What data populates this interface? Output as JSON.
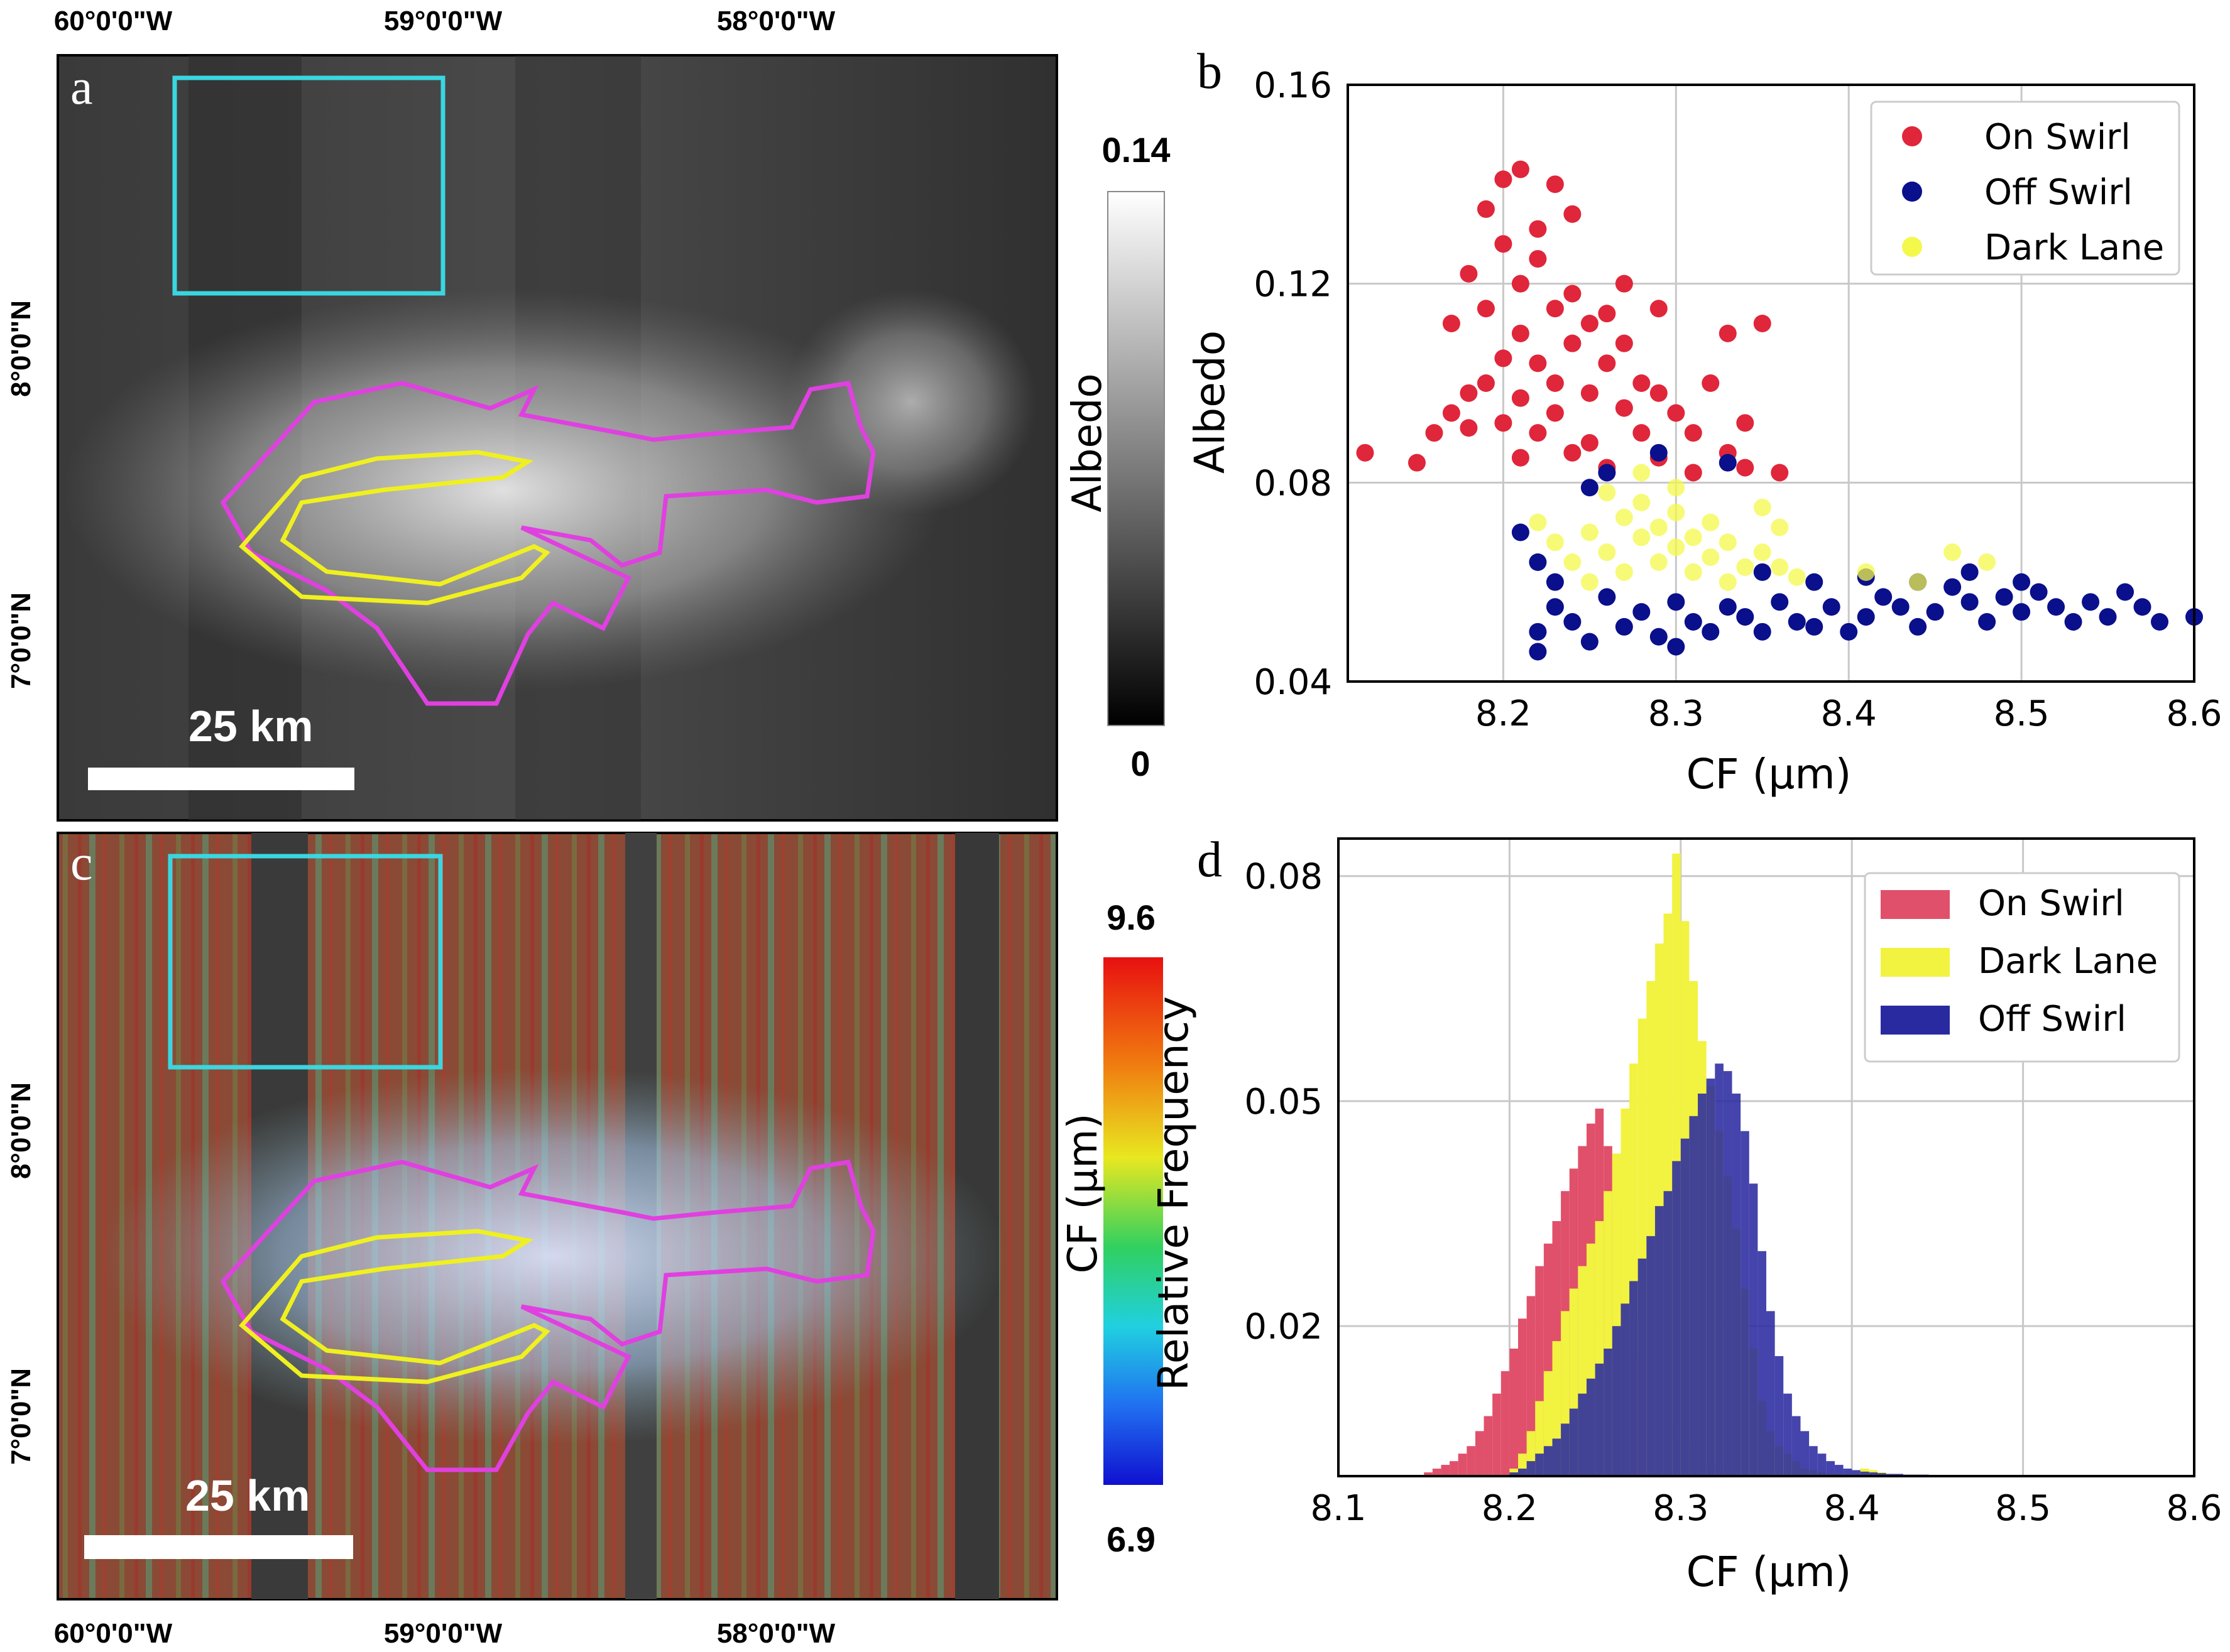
{
  "maps": {
    "panel_a_letter": "a",
    "panel_c_letter": "c",
    "lon_labels": [
      "60°0'0\"W",
      "59°0'0\"W",
      "58°0'0\"W"
    ],
    "lat_labels": [
      "8°0'0\"N",
      "7°0'0\"N"
    ],
    "scale_label": "25 km",
    "albedo_colorbar": {
      "title": "Albedo",
      "max": "0.14",
      "min": "0"
    },
    "cf_colorbar": {
      "title": "CF (μm)",
      "max": "9.6",
      "min": "6.9"
    },
    "region_colors": {
      "roi_box": "#3ad6e0",
      "on_swirl_outline": "#e040e0",
      "dark_lane_outline": "#f0f020"
    }
  },
  "chart_data": [
    {
      "panel": "b",
      "type": "scatter",
      "xlabel": "CF (μm)",
      "ylabel": "Albedo",
      "xlim": [
        8.11,
        8.6
      ],
      "ylim": [
        0.04,
        0.16
      ],
      "xticks": [
        "8.2",
        "8.3",
        "8.4",
        "8.5",
        "8.6"
      ],
      "yticks": [
        "0.04",
        "0.08",
        "0.12",
        "0.16"
      ],
      "grid": true,
      "legend_position": "top-right",
      "series": [
        {
          "name": "On Swirl",
          "color": "#e0263a",
          "points": [
            [
              8.12,
              0.086
            ],
            [
              8.15,
              0.084
            ],
            [
              8.16,
              0.09
            ],
            [
              8.17,
              0.094
            ],
            [
              8.18,
              0.091
            ],
            [
              8.18,
              0.098
            ],
            [
              8.19,
              0.1
            ],
            [
              8.17,
              0.112
            ],
            [
              8.19,
              0.115
            ],
            [
              8.2,
              0.105
            ],
            [
              8.2,
              0.092
            ],
            [
              8.21,
              0.097
            ],
            [
              8.21,
              0.11
            ],
            [
              8.21,
              0.12
            ],
            [
              8.22,
              0.125
            ],
            [
              8.22,
              0.104
            ],
            [
              8.22,
              0.09
            ],
            [
              8.23,
              0.115
            ],
            [
              8.23,
              0.1
            ],
            [
              8.23,
              0.094
            ],
            [
              8.24,
              0.108
            ],
            [
              8.24,
              0.118
            ],
            [
              8.25,
              0.112
            ],
            [
              8.25,
              0.098
            ],
            [
              8.25,
              0.088
            ],
            [
              8.26,
              0.104
            ],
            [
              8.26,
              0.114
            ],
            [
              8.27,
              0.095
            ],
            [
              8.27,
              0.108
            ],
            [
              8.28,
              0.1
            ],
            [
              8.28,
              0.09
            ],
            [
              8.29,
              0.098
            ],
            [
              8.3,
              0.094
            ],
            [
              8.31,
              0.09
            ],
            [
              8.32,
              0.1
            ],
            [
              8.33,
              0.086
            ],
            [
              8.34,
              0.083
            ],
            [
              8.2,
              0.141
            ],
            [
              8.21,
              0.143
            ],
            [
              8.19,
              0.135
            ],
            [
              8.23,
              0.14
            ],
            [
              8.24,
              0.134
            ],
            [
              8.2,
              0.128
            ],
            [
              8.22,
              0.131
            ],
            [
              8.27,
              0.12
            ],
            [
              8.29,
              0.115
            ],
            [
              8.33,
              0.11
            ],
            [
              8.35,
              0.112
            ],
            [
              8.18,
              0.122
            ],
            [
              8.26,
              0.083
            ],
            [
              8.29,
              0.085
            ],
            [
              8.31,
              0.082
            ],
            [
              8.24,
              0.086
            ],
            [
              8.21,
              0.085
            ],
            [
              8.36,
              0.082
            ],
            [
              8.34,
              0.092
            ]
          ]
        },
        {
          "name": "Off Swirl",
          "color": "#0a0f8c",
          "points": [
            [
              8.22,
              0.05
            ],
            [
              8.23,
              0.055
            ],
            [
              8.24,
              0.052
            ],
            [
              8.25,
              0.048
            ],
            [
              8.26,
              0.057
            ],
            [
              8.27,
              0.051
            ],
            [
              8.28,
              0.054
            ],
            [
              8.29,
              0.049
            ],
            [
              8.3,
              0.056
            ],
            [
              8.31,
              0.052
            ],
            [
              8.32,
              0.05
            ],
            [
              8.33,
              0.055
            ],
            [
              8.34,
              0.053
            ],
            [
              8.35,
              0.05
            ],
            [
              8.36,
              0.056
            ],
            [
              8.37,
              0.052
            ],
            [
              8.38,
              0.051
            ],
            [
              8.39,
              0.055
            ],
            [
              8.4,
              0.05
            ],
            [
              8.41,
              0.053
            ],
            [
              8.42,
              0.057
            ],
            [
              8.43,
              0.055
            ],
            [
              8.44,
              0.051
            ],
            [
              8.45,
              0.054
            ],
            [
              8.46,
              0.059
            ],
            [
              8.47,
              0.056
            ],
            [
              8.48,
              0.052
            ],
            [
              8.49,
              0.057
            ],
            [
              8.5,
              0.054
            ],
            [
              8.51,
              0.058
            ],
            [
              8.52,
              0.055
            ],
            [
              8.53,
              0.052
            ],
            [
              8.54,
              0.056
            ],
            [
              8.55,
              0.053
            ],
            [
              8.56,
              0.058
            ],
            [
              8.57,
              0.055
            ],
            [
              8.58,
              0.052
            ],
            [
              8.6,
              0.053
            ],
            [
              8.22,
              0.064
            ],
            [
              8.23,
              0.06
            ],
            [
              8.21,
              0.07
            ],
            [
              8.35,
              0.062
            ],
            [
              8.38,
              0.06
            ],
            [
              8.41,
              0.061
            ],
            [
              8.44,
              0.06
            ],
            [
              8.47,
              0.062
            ],
            [
              8.5,
              0.06
            ],
            [
              8.22,
              0.046
            ],
            [
              8.3,
              0.047
            ],
            [
              8.26,
              0.082
            ],
            [
              8.29,
              0.086
            ],
            [
              8.33,
              0.084
            ],
            [
              8.25,
              0.079
            ]
          ]
        },
        {
          "name": "Dark Lane",
          "color": "#f4f84a",
          "points": [
            [
              8.24,
              0.064
            ],
            [
              8.25,
              0.07
            ],
            [
              8.26,
              0.066
            ],
            [
              8.27,
              0.073
            ],
            [
              8.27,
              0.062
            ],
            [
              8.28,
              0.069
            ],
            [
              8.28,
              0.076
            ],
            [
              8.29,
              0.064
            ],
            [
              8.29,
              0.071
            ],
            [
              8.3,
              0.067
            ],
            [
              8.3,
              0.074
            ],
            [
              8.31,
              0.062
            ],
            [
              8.31,
              0.069
            ],
            [
              8.32,
              0.065
            ],
            [
              8.32,
              0.072
            ],
            [
              8.33,
              0.068
            ],
            [
              8.34,
              0.063
            ],
            [
              8.35,
              0.066
            ],
            [
              8.36,
              0.063
            ],
            [
              8.26,
              0.078
            ],
            [
              8.25,
              0.06
            ],
            [
              8.23,
              0.068
            ],
            [
              8.3,
              0.079
            ],
            [
              8.33,
              0.06
            ],
            [
              8.37,
              0.061
            ],
            [
              8.28,
              0.082
            ],
            [
              8.35,
              0.075
            ],
            [
              8.22,
              0.072
            ],
            [
              8.41,
              0.062
            ],
            [
              8.44,
              0.06
            ],
            [
              8.46,
              0.066
            ],
            [
              8.48,
              0.064
            ],
            [
              8.36,
              0.071
            ]
          ]
        }
      ]
    },
    {
      "panel": "d",
      "type": "histogram",
      "xlabel": "CF (μm)",
      "ylabel": "Relative Frequency",
      "xlim": [
        8.1,
        8.6
      ],
      "ylim": [
        0.0,
        0.085
      ],
      "xticks": [
        "8.1",
        "8.2",
        "8.3",
        "8.4",
        "8.5",
        "8.6"
      ],
      "yticks": [
        "0.02",
        "0.05",
        "0.08"
      ],
      "grid": true,
      "legend_position": "top-right",
      "bin_width": 0.005,
      "series": [
        {
          "name": "On Swirl",
          "color": "#e0506a",
          "bins_start": 8.15,
          "values": [
            0.0005,
            0.001,
            0.0015,
            0.002,
            0.003,
            0.004,
            0.006,
            0.008,
            0.011,
            0.014,
            0.017,
            0.021,
            0.024,
            0.028,
            0.031,
            0.034,
            0.038,
            0.041,
            0.044,
            0.047,
            0.049,
            0.044,
            0.036,
            0.028,
            0.021,
            0.016,
            0.012,
            0.009,
            0.007,
            0.005,
            0.004,
            0.003,
            0.002,
            0.0015,
            0.001,
            0.0008,
            0.0005,
            0.0003
          ]
        },
        {
          "name": "Dark Lane",
          "color": "#f2f240",
          "bins_start": 8.2,
          "values": [
            0.001,
            0.003,
            0.006,
            0.01,
            0.014,
            0.018,
            0.022,
            0.025,
            0.028,
            0.031,
            0.034,
            0.038,
            0.043,
            0.049,
            0.055,
            0.061,
            0.066,
            0.071,
            0.075,
            0.083,
            0.074,
            0.066,
            0.058,
            0.052,
            0.046,
            0.04,
            0.033,
            0.025,
            0.017,
            0.01,
            0.006,
            0.004,
            0.003,
            0.002,
            0.001,
            0.0008,
            0.0005,
            0.0003,
            0.0003,
            0.0002,
            0.0003,
            0.001,
            0.0008,
            0.0005,
            0.0002
          ]
        },
        {
          "name": "Off Swirl",
          "color": "#2a2aa0",
          "bins_start": 8.2,
          "values": [
            0.0005,
            0.001,
            0.002,
            0.003,
            0.004,
            0.005,
            0.007,
            0.009,
            0.011,
            0.013,
            0.015,
            0.017,
            0.02,
            0.023,
            0.026,
            0.029,
            0.032,
            0.036,
            0.038,
            0.042,
            0.045,
            0.048,
            0.051,
            0.053,
            0.055,
            0.054,
            0.051,
            0.046,
            0.039,
            0.03,
            0.022,
            0.016,
            0.011,
            0.008,
            0.006,
            0.004,
            0.003,
            0.002,
            0.0015,
            0.001,
            0.0008,
            0.0006,
            0.0005,
            0.0004,
            0.0003,
            0.0003,
            0.0002,
            0.0002,
            0.0002,
            0.0001,
            0.0001,
            0.0001,
            0.0001,
            0.0001,
            0.0001,
            0.0001,
            0.0001,
            0.0001,
            0.0001,
            0.0001,
            0.0001,
            0.0001,
            0.0001,
            0.0001,
            0.0001,
            0.0001,
            0.0001,
            0.0001,
            0.0001,
            0.0001,
            0.0001,
            0.0001,
            0.0001,
            0.0001,
            0.0001,
            0.0001,
            0.0001,
            0.0001,
            0.0001,
            0.0001
          ]
        }
      ]
    }
  ]
}
